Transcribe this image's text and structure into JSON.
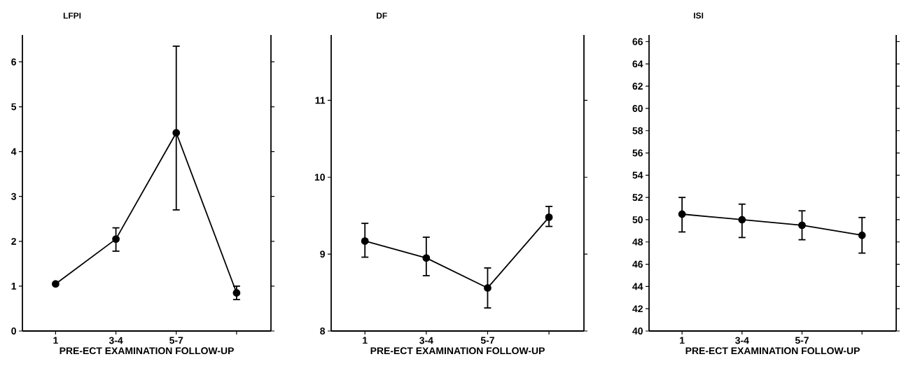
{
  "chart_data": [
    {
      "type": "line",
      "title": "LFPI",
      "xlabel": "PRE-ECT EXAMINATION  FOLLOW-UP",
      "categories": [
        "1",
        "3-4",
        "5-7",
        null
      ],
      "values": [
        1.05,
        2.05,
        4.42,
        0.85
      ],
      "errors": [
        null,
        [
          1.78,
          2.3
        ],
        [
          2.7,
          6.35
        ],
        [
          0.7,
          1.0
        ]
      ],
      "ylim": [
        0,
        6.6
      ],
      "yticks": [
        0,
        1,
        2,
        3,
        4,
        5,
        6
      ],
      "color": "#000000",
      "marker": "circle",
      "line_style": "solid"
    },
    {
      "type": "line",
      "title": "DF",
      "xlabel": "PRE-ECT EXAMINATION  FOLLOW-UP",
      "categories": [
        "1",
        "3-4",
        "5-7",
        null
      ],
      "values": [
        9.17,
        8.95,
        8.56,
        9.48
      ],
      "errors": [
        [
          8.96,
          9.4
        ],
        [
          8.72,
          9.22
        ],
        [
          8.3,
          8.82
        ],
        [
          9.36,
          9.62
        ]
      ],
      "ylim": [
        8,
        11.85
      ],
      "yticks": [
        8,
        9,
        10,
        11
      ],
      "color": "#000000",
      "marker": "circle",
      "line_style": "solid"
    },
    {
      "type": "line",
      "title": "ISI",
      "xlabel": "PRE-ECT EXAMINATION  FOLLOW-UP",
      "categories": [
        "1",
        "3-4",
        "5-7",
        null
      ],
      "values": [
        50.5,
        50.0,
        49.5,
        48.6
      ],
      "errors": [
        [
          48.9,
          52.0
        ],
        [
          48.4,
          51.4
        ],
        [
          48.2,
          50.8
        ],
        [
          47.0,
          50.2
        ]
      ],
      "ylim": [
        40,
        66.6
      ],
      "yticks": [
        40,
        42,
        44,
        46,
        48,
        50,
        52,
        54,
        56,
        58,
        60,
        62,
        64,
        66
      ],
      "color": "#000000",
      "marker": "circle",
      "line_style": "solid"
    }
  ]
}
